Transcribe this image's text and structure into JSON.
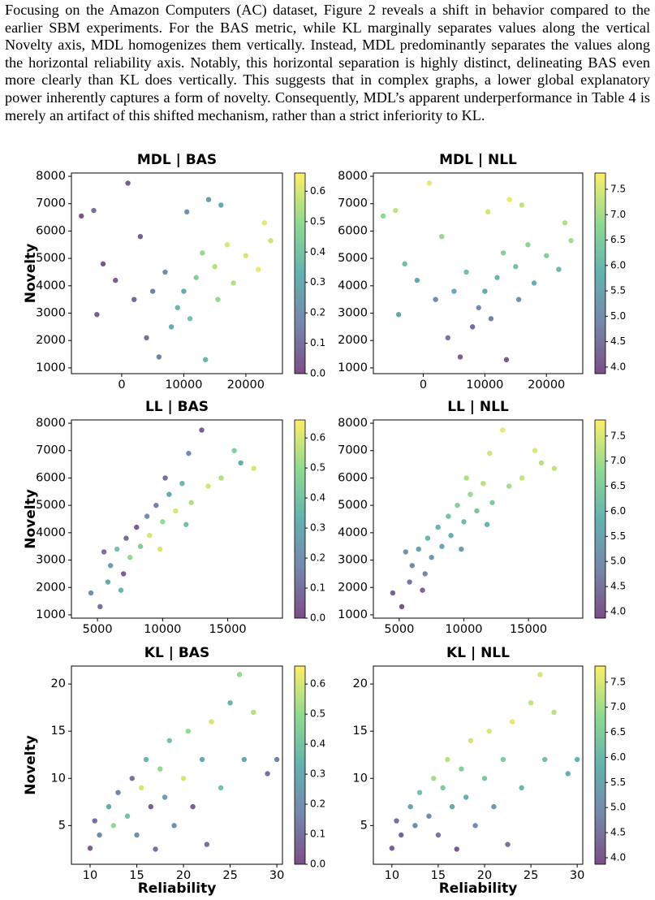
{
  "paragraph": "Focusing on the Amazon Computers (AC) dataset, Figure 2 reveals a shift in behavior compared to the earlier SBM experiments. For the BAS metric, while KL marginally separates values along the vertical Novelty axis, MDL homogenizes them vertically. Instead, MDL predominantly separates the values along the horizontal reliability axis. Notably, this horizontal separation is highly distinct, delineating BAS even more clearly than KL does vertically. This suggests that in complex graphs, a lower global explanatory power inherently captures a form of novelty. Consequently, MDL’s apparent underperformance in Table 4 is merely an artifact of this shifted mechanism, rather than a strict inferiority to KL.",
  "chart_data": [
    {
      "type": "scatter",
      "title": "MDL | BAS",
      "ylabel": "Novelty",
      "x": [
        -6500,
        -4500,
        1000,
        -3000,
        -1000,
        2000,
        -4000,
        4000,
        6000,
        8000,
        9000,
        10000,
        11000,
        12000,
        13000,
        14000,
        15000,
        16000,
        17000,
        18000,
        20000,
        22000,
        23000,
        24000,
        7000,
        5000,
        10500,
        13500,
        3000,
        15500
      ],
      "y": [
        6550,
        6750,
        7750,
        4800,
        4200,
        3500,
        2950,
        2100,
        1400,
        2500,
        3200,
        3800,
        2800,
        4300,
        5200,
        7150,
        4700,
        6950,
        5500,
        4100,
        5100,
        4600,
        6300,
        5650,
        4500,
        3800,
        6700,
        1300,
        5800,
        3500
      ],
      "c": [
        0.02,
        0.1,
        0.05,
        0.03,
        0.05,
        0.08,
        0.05,
        0.1,
        0.15,
        0.3,
        0.35,
        0.3,
        0.4,
        0.45,
        0.5,
        0.25,
        0.55,
        0.3,
        0.6,
        0.55,
        0.6,
        0.63,
        0.62,
        0.58,
        0.2,
        0.15,
        0.2,
        0.35,
        0.05,
        0.5
      ],
      "xlim": [
        -8100,
        25900
      ],
      "ylim": [
        790,
        8120
      ],
      "xticks": [
        0,
        10000,
        20000
      ],
      "yticks": [
        1000,
        2000,
        3000,
        4000,
        5000,
        6000,
        7000,
        8000
      ],
      "clim": [
        0,
        0.66
      ],
      "cticks": [
        {
          "value": 0,
          "label": "0.0"
        },
        0.1,
        0.2,
        0.3,
        0.4,
        0.5,
        0.6
      ]
    },
    {
      "type": "scatter",
      "title": "MDL | NLL",
      "x": [
        -6500,
        -4500,
        1000,
        -3000,
        -1000,
        2000,
        -4000,
        4000,
        6000,
        8000,
        9000,
        10000,
        11000,
        12000,
        13000,
        14000,
        15000,
        16000,
        17000,
        18000,
        20000,
        22000,
        23000,
        24000,
        7000,
        5000,
        10500,
        13500,
        3000,
        15500
      ],
      "y": [
        6550,
        6750,
        7750,
        4800,
        4200,
        3500,
        2950,
        2100,
        1400,
        2500,
        3200,
        3800,
        2800,
        4300,
        5200,
        7150,
        4700,
        6950,
        5500,
        4100,
        5100,
        4600,
        6300,
        5650,
        4500,
        3800,
        6700,
        1300,
        5800,
        3500
      ],
      "c": [
        6.8,
        7.3,
        7.6,
        6.2,
        5.6,
        5.0,
        5.6,
        4.6,
        4.2,
        4.4,
        5.0,
        5.6,
        4.8,
        6.0,
        6.6,
        7.6,
        6.3,
        7.3,
        6.7,
        5.8,
        6.6,
        6.0,
        7.1,
        7.0,
        6.2,
        5.7,
        7.4,
        4.1,
        6.9,
        5.2
      ],
      "xlim": [
        -8100,
        25900
      ],
      "ylim": [
        790,
        8120
      ],
      "xticks": [
        0,
        10000,
        20000
      ],
      "yticks": [
        1000,
        2000,
        3000,
        4000,
        5000,
        6000,
        7000,
        8000
      ],
      "clim": [
        3.87,
        7.82
      ],
      "cticks": [
        {
          "value": 4,
          "label": "4.0"
        },
        4.5,
        {
          "value": 5,
          "label": "5.0"
        },
        5.5,
        {
          "value": 6,
          "label": "6.0"
        },
        6.5,
        {
          "value": 7,
          "label": "7.0"
        },
        7.5
      ]
    },
    {
      "type": "scatter",
      "title": "LL | BAS",
      "ylabel": "Novelty",
      "x": [
        4500,
        5200,
        5800,
        6000,
        6500,
        7000,
        7200,
        7500,
        8000,
        8300,
        8800,
        9000,
        9500,
        10000,
        10500,
        11000,
        11500,
        12000,
        12200,
        13000,
        13500,
        14500,
        15500,
        16000,
        17000,
        5500,
        6800,
        9800,
        11800,
        10200
      ],
      "y": [
        1800,
        1300,
        2200,
        2800,
        3400,
        2500,
        3800,
        3100,
        4200,
        3500,
        4600,
        3900,
        5000,
        4400,
        5400,
        4800,
        5800,
        6900,
        5100,
        7750,
        5700,
        6000,
        7000,
        6550,
        6350,
        3300,
        1900,
        3400,
        4300,
        6000
      ],
      "c": [
        0.2,
        0.1,
        0.3,
        0.25,
        0.4,
        0.05,
        0.1,
        0.5,
        0.05,
        0.45,
        0.2,
        0.6,
        0.15,
        0.5,
        0.3,
        0.6,
        0.35,
        0.2,
        0.55,
        0.05,
        0.6,
        0.55,
        0.45,
        0.3,
        0.6,
        0.1,
        0.35,
        0.6,
        0.4,
        0.1
      ],
      "xlim": [
        3000,
        19200
      ],
      "ylim": [
        880,
        8120
      ],
      "xticks": [
        5000,
        10000,
        15000
      ],
      "yticks": [
        1000,
        2000,
        3000,
        4000,
        5000,
        6000,
        7000,
        8000
      ],
      "clim": [
        0,
        0.66
      ],
      "cticks": [
        {
          "value": 0,
          "label": "0.0"
        },
        0.1,
        0.2,
        0.3,
        0.4,
        0.5,
        0.6
      ]
    },
    {
      "type": "scatter",
      "title": "LL | NLL",
      "x": [
        4500,
        5200,
        5800,
        6000,
        6500,
        7000,
        7200,
        7500,
        8000,
        8300,
        8800,
        9000,
        9500,
        10000,
        10500,
        11000,
        11500,
        12000,
        12200,
        13000,
        13500,
        14500,
        15500,
        16000,
        17000,
        5500,
        6800,
        9800,
        11800,
        10200
      ],
      "y": [
        1800,
        1300,
        2200,
        2800,
        3400,
        2500,
        3800,
        3100,
        4200,
        3500,
        4600,
        3900,
        5000,
        4400,
        5400,
        4800,
        5800,
        6900,
        5100,
        7750,
        5700,
        6000,
        7000,
        6550,
        6350,
        3300,
        1900,
        3400,
        4300,
        6000
      ],
      "c": [
        4.2,
        4.0,
        4.6,
        5.0,
        5.5,
        4.9,
        6.0,
        5.3,
        5.9,
        5.6,
        6.3,
        5.8,
        6.6,
        6.1,
        6.9,
        6.4,
        7.2,
        7.4,
        6.5,
        7.6,
        7.0,
        7.3,
        7.5,
        7.2,
        7.3,
        5.2,
        4.3,
        5.4,
        5.9,
        7.1
      ],
      "xlim": [
        3000,
        19200
      ],
      "ylim": [
        880,
        8120
      ],
      "xticks": [
        5000,
        10000,
        15000
      ],
      "yticks": [
        1000,
        2000,
        3000,
        4000,
        5000,
        6000,
        7000,
        8000
      ],
      "clim": [
        3.87,
        7.82
      ],
      "cticks": [
        {
          "value": 4,
          "label": "4.0"
        },
        4.5,
        {
          "value": 5,
          "label": "5.0"
        },
        5.5,
        {
          "value": 6,
          "label": "6.0"
        },
        6.5,
        {
          "value": 7,
          "label": "7.0"
        },
        7.5
      ]
    },
    {
      "type": "scatter",
      "title": "KL | BAS",
      "xlabel": "Reliability",
      "ylabel": "Novelty",
      "x": [
        10,
        10.5,
        11,
        12,
        12.5,
        13,
        14,
        14.5,
        15,
        15.5,
        16,
        16.5,
        17,
        17.5,
        18,
        18.5,
        19,
        20,
        20.5,
        21,
        22,
        22.5,
        23,
        24,
        25,
        26,
        26.5,
        27.5,
        29,
        30
      ],
      "y": [
        2.6,
        5.5,
        4,
        7,
        5,
        8.5,
        6,
        10,
        4,
        9,
        12,
        7,
        2.5,
        11,
        8,
        14,
        5,
        10,
        15,
        7,
        12,
        3,
        16,
        9,
        18,
        21,
        12,
        17,
        10.5,
        12
      ],
      "c": [
        0.05,
        0.1,
        0.2,
        0.3,
        0.5,
        0.15,
        0.4,
        0.1,
        0.2,
        0.6,
        0.35,
        0.05,
        0.1,
        0.5,
        0.25,
        0.4,
        0.2,
        0.6,
        0.5,
        0.05,
        0.3,
        0.1,
        0.6,
        0.4,
        0.35,
        0.5,
        0.3,
        0.55,
        0.1,
        0.15
      ],
      "xlim": [
        8,
        30.6
      ],
      "ylim": [
        0.9,
        21.9
      ],
      "xticks": [
        10,
        15,
        20,
        25,
        30
      ],
      "yticks": [
        5,
        10,
        15,
        20
      ],
      "clim": [
        0,
        0.66
      ],
      "cticks": [
        {
          "value": 0,
          "label": "0.0"
        },
        0.1,
        0.2,
        0.3,
        0.4,
        0.5,
        0.6
      ]
    },
    {
      "type": "scatter",
      "title": "KL | NLL",
      "xlabel": "Reliability",
      "x": [
        10,
        10.5,
        11,
        12,
        12.5,
        13,
        14,
        14.5,
        15,
        15.5,
        16,
        16.5,
        17,
        17.5,
        18,
        18.5,
        19,
        20,
        20.5,
        21,
        22,
        22.5,
        23,
        24,
        25,
        26,
        26.5,
        27.5,
        29,
        30
      ],
      "y": [
        2.6,
        5.5,
        4,
        7,
        5,
        8.5,
        6,
        10,
        4,
        9,
        12,
        7,
        2.5,
        11,
        8,
        14,
        5,
        10,
        15,
        7,
        12,
        3,
        16,
        9,
        18,
        21,
        12,
        17,
        10.5,
        12
      ],
      "c": [
        4.2,
        4.5,
        4.3,
        5.5,
        5.0,
        6.3,
        5.0,
        7.0,
        4.6,
        6.5,
        7.2,
        5.6,
        4.1,
        6.6,
        5.8,
        7.4,
        5.0,
        6.4,
        7.5,
        5.3,
        6.5,
        4.5,
        7.6,
        6.0,
        7.3,
        7.5,
        6.2,
        7.2,
        5.8,
        5.9
      ],
      "xlim": [
        8,
        30.6
      ],
      "ylim": [
        0.9,
        21.9
      ],
      "xticks": [
        10,
        15,
        20,
        25,
        30
      ],
      "yticks": [
        5,
        10,
        15,
        20
      ],
      "clim": [
        3.87,
        7.82
      ],
      "cticks": [
        {
          "value": 4,
          "label": "4.0"
        },
        4.5,
        {
          "value": 5,
          "label": "5.0"
        },
        5.5,
        {
          "value": 6,
          "label": "6.0"
        },
        6.5,
        {
          "value": 7,
          "label": "7.0"
        },
        7.5
      ]
    }
  ]
}
